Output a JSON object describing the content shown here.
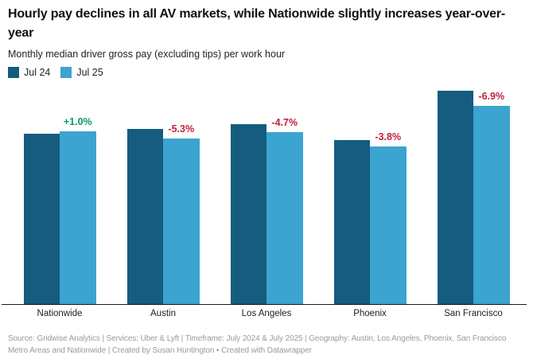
{
  "title": "Hourly pay declines in all AV markets, while Nationwide slightly increases year-over-year",
  "subtitle": "Monthly median driver gross pay (excluding tips) per work hour",
  "legend": [
    {
      "label": "Jul 24",
      "color": "#155c7e"
    },
    {
      "label": "Jul 25",
      "color": "#3ba4d0"
    }
  ],
  "colors": {
    "dark_blue": "#155c7e",
    "light_blue": "#3ba4d0",
    "increase_green": "#0a9a5e",
    "decrease_red": "#c0223b",
    "axis": "#1a1a1a",
    "footer_gray": "#9a9a9a"
  },
  "chart_data": {
    "type": "bar",
    "title": "Hourly pay declines in all AV markets, while Nationwide slightly increases year-over-year",
    "subtitle": "Monthly median driver gross pay (excluding tips) per work hour",
    "categories": [
      "Nationwide",
      "Austin",
      "Los Angeles",
      "Phoenix",
      "San Francisco"
    ],
    "series": [
      {
        "name": "Jul 24",
        "color": "#155c7e",
        "values": [
          214,
          220,
          226,
          206,
          268
        ]
      },
      {
        "name": "Jul 25",
        "color": "#3ba4d0",
        "values": [
          217,
          208,
          216,
          198,
          249
        ]
      }
    ],
    "units": "relative bar height in rendered px; chart shows no y-axis scale",
    "change_labels": [
      {
        "text": "+1.0%",
        "color": "#0a9a5e"
      },
      {
        "text": "-5.3%",
        "color": "#c0223b"
      },
      {
        "text": "-4.7%",
        "color": "#c0223b"
      },
      {
        "text": "-3.8%",
        "color": "#c0223b"
      },
      {
        "text": "-6.9%",
        "color": "#c0223b"
      }
    ],
    "xlabel": "",
    "ylabel": "",
    "y_axis": "hidden",
    "grid": false,
    "legend_position": "top-left"
  },
  "footer": "Source: Gridwise Analytics | Services: Uber & Lyft | Timeframe: July 2024 & July 2025 | Geography: Austin, Los Angeles, Phoenix, San Francisco Metro Areas and Nationwide | Created by Susan Huntington • Created with Datawrapper"
}
